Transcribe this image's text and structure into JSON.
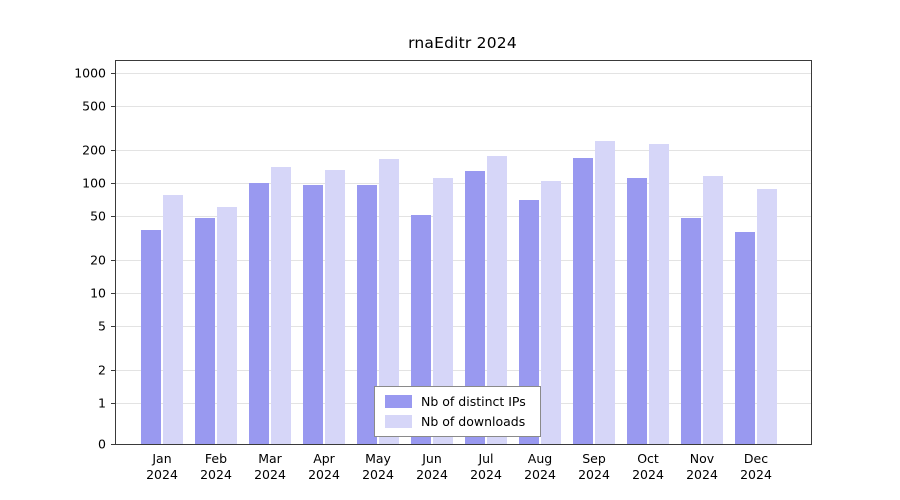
{
  "chart_data": {
    "type": "bar",
    "title": "rnaEditr 2024",
    "scale": "symlog",
    "grid": true,
    "legend_position": "bottom-center-inside",
    "ylim": [
      0,
      1000
    ],
    "yticks": [
      0,
      1,
      2,
      5,
      10,
      20,
      50,
      100,
      200,
      500,
      1000
    ],
    "categories": [
      {
        "month": "Jan",
        "year": "2024"
      },
      {
        "month": "Feb",
        "year": "2024"
      },
      {
        "month": "Mar",
        "year": "2024"
      },
      {
        "month": "Apr",
        "year": "2024"
      },
      {
        "month": "May",
        "year": "2024"
      },
      {
        "month": "Jun",
        "year": "2024"
      },
      {
        "month": "Jul",
        "year": "2024"
      },
      {
        "month": "Aug",
        "year": "2024"
      },
      {
        "month": "Sep",
        "year": "2024"
      },
      {
        "month": "Oct",
        "year": "2024"
      },
      {
        "month": "Nov",
        "year": "2024"
      },
      {
        "month": "Dec",
        "year": "2024"
      }
    ],
    "series": [
      {
        "name": "Nb of distinct IPs",
        "color": "#9999f0",
        "values": [
          37,
          48,
          100,
          95,
          95,
          51,
          128,
          70,
          170,
          110,
          48,
          36
        ]
      },
      {
        "name": "Nb of downloads",
        "color": "#d6d6f8",
        "values": [
          78,
          60,
          140,
          130,
          165,
          112,
          175,
          104,
          240,
          225,
          115,
          88
        ]
      }
    ]
  }
}
